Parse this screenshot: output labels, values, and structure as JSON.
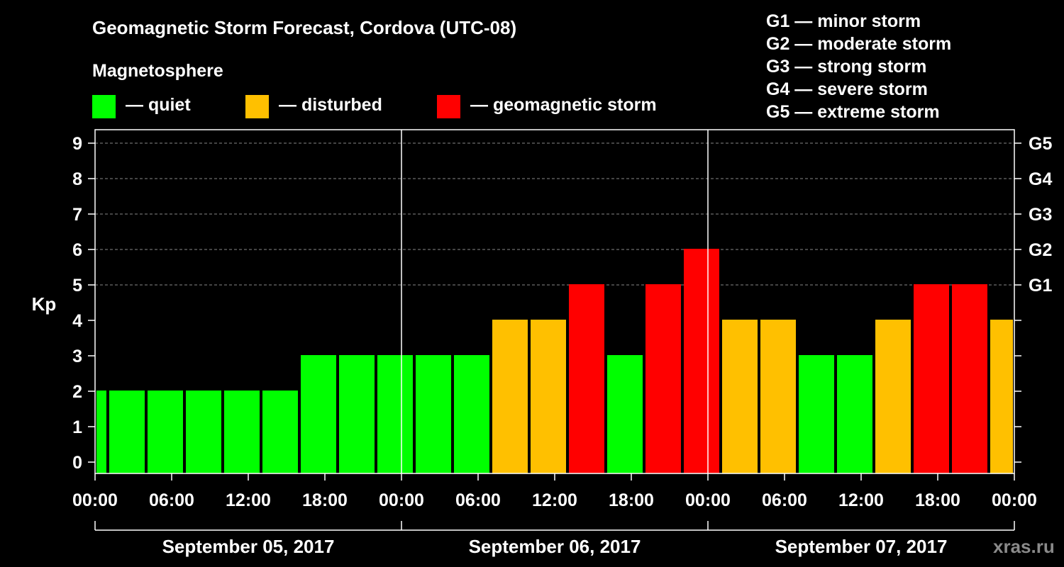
{
  "title": "Geomagnetic Storm Forecast, Cordova (UTC-08)",
  "legend": {
    "heading": "Magnetosphere",
    "items": [
      {
        "label": "— quiet",
        "color": "#00ff00"
      },
      {
        "label": "— disturbed",
        "color": "#ffc000"
      },
      {
        "label": "— geomagnetic storm",
        "color": "#ff0000"
      }
    ]
  },
  "g_scale": [
    "G1 — minor storm",
    "G2 — moderate storm",
    "G3 — strong storm",
    "G4 — severe storm",
    "G5 — extreme storm"
  ],
  "watermark": "xras.ru",
  "chart_data": {
    "type": "bar",
    "title": "Geomagnetic Storm Forecast, Cordova (UTC-08)",
    "ylabel": "Kp",
    "ylim": [
      0,
      9
    ],
    "yticks": [
      "0",
      "1",
      "2",
      "3",
      "4",
      "5",
      "6",
      "7",
      "8",
      "9"
    ],
    "right_axis": [
      {
        "kp": 5,
        "label": "G1"
      },
      {
        "kp": 6,
        "label": "G2"
      },
      {
        "kp": 7,
        "label": "G3"
      },
      {
        "kp": 8,
        "label": "G4"
      },
      {
        "kp": 9,
        "label": "G5"
      }
    ],
    "xlim_hours": [
      0,
      72
    ],
    "xticks": [
      {
        "hour": 0,
        "label": "00:00"
      },
      {
        "hour": 6,
        "label": "06:00"
      },
      {
        "hour": 12,
        "label": "12:00"
      },
      {
        "hour": 18,
        "label": "18:00"
      },
      {
        "hour": 24,
        "label": "00:00"
      },
      {
        "hour": 30,
        "label": "06:00"
      },
      {
        "hour": 36,
        "label": "12:00"
      },
      {
        "hour": 42,
        "label": "18:00"
      },
      {
        "hour": 48,
        "label": "00:00"
      },
      {
        "hour": 54,
        "label": "06:00"
      },
      {
        "hour": 60,
        "label": "12:00"
      },
      {
        "hour": 66,
        "label": "18:00"
      },
      {
        "hour": 72,
        "label": "00:00"
      }
    ],
    "day_dividers_hours": [
      24,
      48
    ],
    "days": [
      {
        "label": "September 05, 2017",
        "start": 0,
        "end": 24
      },
      {
        "label": "September 06, 2017",
        "start": 24,
        "end": 48
      },
      {
        "label": "September 07, 2017",
        "start": 48,
        "end": 72
      }
    ],
    "color_scale": {
      "quiet": "#00ff00",
      "disturbed": "#ffc000",
      "storm": "#ff0000"
    },
    "bars": [
      {
        "start": 0,
        "end": 1,
        "kp": 2,
        "level": "quiet"
      },
      {
        "start": 1,
        "end": 4,
        "kp": 2,
        "level": "quiet"
      },
      {
        "start": 4,
        "end": 7,
        "kp": 2,
        "level": "quiet"
      },
      {
        "start": 7,
        "end": 10,
        "kp": 2,
        "level": "quiet"
      },
      {
        "start": 10,
        "end": 13,
        "kp": 2,
        "level": "quiet"
      },
      {
        "start": 13,
        "end": 16,
        "kp": 2,
        "level": "quiet"
      },
      {
        "start": 16,
        "end": 19,
        "kp": 3,
        "level": "quiet"
      },
      {
        "start": 19,
        "end": 22,
        "kp": 3,
        "level": "quiet"
      },
      {
        "start": 22,
        "end": 25,
        "kp": 3,
        "level": "quiet"
      },
      {
        "start": 25,
        "end": 28,
        "kp": 3,
        "level": "quiet"
      },
      {
        "start": 28,
        "end": 31,
        "kp": 3,
        "level": "quiet"
      },
      {
        "start": 31,
        "end": 34,
        "kp": 4,
        "level": "disturbed"
      },
      {
        "start": 34,
        "end": 37,
        "kp": 4,
        "level": "disturbed"
      },
      {
        "start": 37,
        "end": 40,
        "kp": 5,
        "level": "storm"
      },
      {
        "start": 40,
        "end": 43,
        "kp": 3,
        "level": "quiet"
      },
      {
        "start": 43,
        "end": 46,
        "kp": 5,
        "level": "storm"
      },
      {
        "start": 46,
        "end": 49,
        "kp": 6,
        "level": "storm"
      },
      {
        "start": 49,
        "end": 52,
        "kp": 4,
        "level": "disturbed"
      },
      {
        "start": 52,
        "end": 55,
        "kp": 4,
        "level": "disturbed"
      },
      {
        "start": 55,
        "end": 58,
        "kp": 3,
        "level": "quiet"
      },
      {
        "start": 58,
        "end": 61,
        "kp": 3,
        "level": "quiet"
      },
      {
        "start": 61,
        "end": 64,
        "kp": 4,
        "level": "disturbed"
      },
      {
        "start": 64,
        "end": 67,
        "kp": 5,
        "level": "storm"
      },
      {
        "start": 67,
        "end": 70,
        "kp": 5,
        "level": "storm"
      },
      {
        "start": 70,
        "end": 72,
        "kp": 4,
        "level": "disturbed"
      }
    ]
  }
}
